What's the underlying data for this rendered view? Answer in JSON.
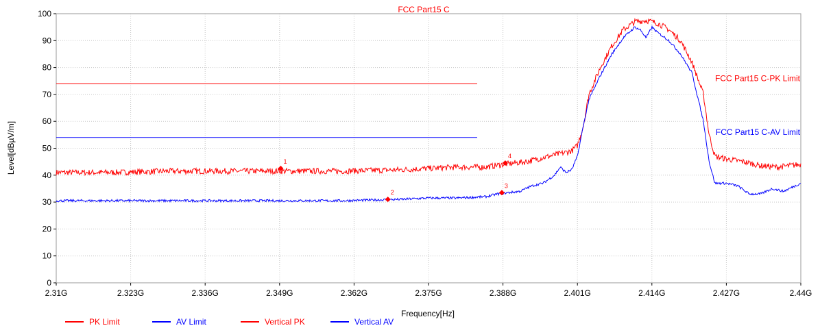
{
  "chart_data": {
    "type": "line",
    "title": "FCC Part15 C",
    "xlabel": "Frequency[Hz]",
    "ylabel": "Level[dBµV/m]",
    "xlim": [
      2.31,
      2.44
    ],
    "ylim": [
      0,
      100
    ],
    "x_ticks": [
      2.31,
      2.323,
      2.336,
      2.349,
      2.362,
      2.375,
      2.388,
      2.401,
      2.414,
      2.427,
      2.44
    ],
    "x_tick_labels": [
      "2.31G",
      "2.323G",
      "2.336G",
      "2.349G",
      "2.362G",
      "2.375G",
      "2.388G",
      "2.401G",
      "2.414G",
      "2.427G",
      "2.44G"
    ],
    "y_ticks": [
      0,
      10,
      20,
      30,
      40,
      50,
      60,
      70,
      80,
      90,
      100
    ],
    "y_tick_labels": [
      "0",
      "10",
      "20",
      "30",
      "40",
      "50",
      "60",
      "70",
      "80",
      "90",
      "100"
    ],
    "grid": true,
    "legend_position": "bottom",
    "limit_annotations": [
      {
        "text": "FCC Part15 C-PK Limit",
        "color": "#ff0000",
        "y": 76
      },
      {
        "text": "FCC Part15 C-AV Limit",
        "color": "#0000ff",
        "y": 56
      }
    ],
    "series": [
      {
        "name": "PK Limit",
        "color": "#ff0000",
        "legend_text_color": "#ff0000",
        "x": [
          2.31,
          2.3835
        ],
        "y": [
          74,
          74
        ]
      },
      {
        "name": "AV Limit",
        "color": "#0000ff",
        "legend_text_color": "#0000ff",
        "x": [
          2.31,
          2.3835
        ],
        "y": [
          54,
          54
        ]
      },
      {
        "name": "Vertical PK",
        "color": "#ff0000",
        "legend_text_color": "#ff0000",
        "x": [
          2.31,
          2.32,
          2.33,
          2.34,
          2.35,
          2.36,
          2.37,
          2.375,
          2.38,
          2.385,
          2.388,
          2.392,
          2.396,
          2.399,
          2.4,
          2.401,
          2.402,
          2.403,
          2.405,
          2.407,
          2.409,
          2.411,
          2.413,
          2.415,
          2.417,
          2.419,
          2.421,
          2.423,
          2.424,
          2.425,
          2.427,
          2.43,
          2.433,
          2.436,
          2.44
        ],
        "y": [
          41,
          41,
          41.5,
          41.5,
          41.5,
          41.5,
          42,
          42.5,
          43,
          43,
          44,
          45,
          47,
          48.5,
          49,
          51,
          58,
          70,
          80,
          88,
          94,
          97,
          97.5,
          96.5,
          94,
          90,
          82,
          70,
          55,
          47,
          46,
          45,
          43.5,
          43,
          44
        ]
      },
      {
        "name": "Vertical AV",
        "color": "#0000ff",
        "legend_text_color": "#0000ff",
        "x": [
          2.31,
          2.32,
          2.33,
          2.34,
          2.35,
          2.36,
          2.37,
          2.375,
          2.38,
          2.385,
          2.387,
          2.389,
          2.391,
          2.393,
          2.395,
          2.397,
          2.398,
          2.399,
          2.4,
          2.401,
          2.402,
          2.403,
          2.405,
          2.407,
          2.409,
          2.411,
          2.412,
          2.413,
          2.414,
          2.415,
          2.417,
          2.419,
          2.421,
          2.423,
          2.424,
          2.425,
          2.427,
          2.429,
          2.431,
          2.433,
          2.435,
          2.437,
          2.44
        ],
        "y": [
          30.5,
          30.5,
          30.5,
          30.5,
          30.5,
          30.5,
          31,
          31.5,
          31.5,
          32,
          33,
          33.5,
          34,
          36,
          37,
          40,
          43,
          41,
          42,
          47,
          58,
          68,
          77,
          85,
          91,
          95,
          94,
          91,
          95,
          93,
          90,
          85,
          78,
          60,
          45,
          37,
          37,
          36,
          33,
          33,
          35,
          34,
          37
        ]
      }
    ],
    "markers": [
      {
        "label": "1",
        "x": 2.3492,
        "y": 42.5
      },
      {
        "label": "2",
        "x": 2.3679,
        "y": 31
      },
      {
        "label": "3",
        "x": 2.3878,
        "y": 33.5
      },
      {
        "label": "4",
        "x": 2.3884,
        "y": 44.5
      }
    ]
  }
}
